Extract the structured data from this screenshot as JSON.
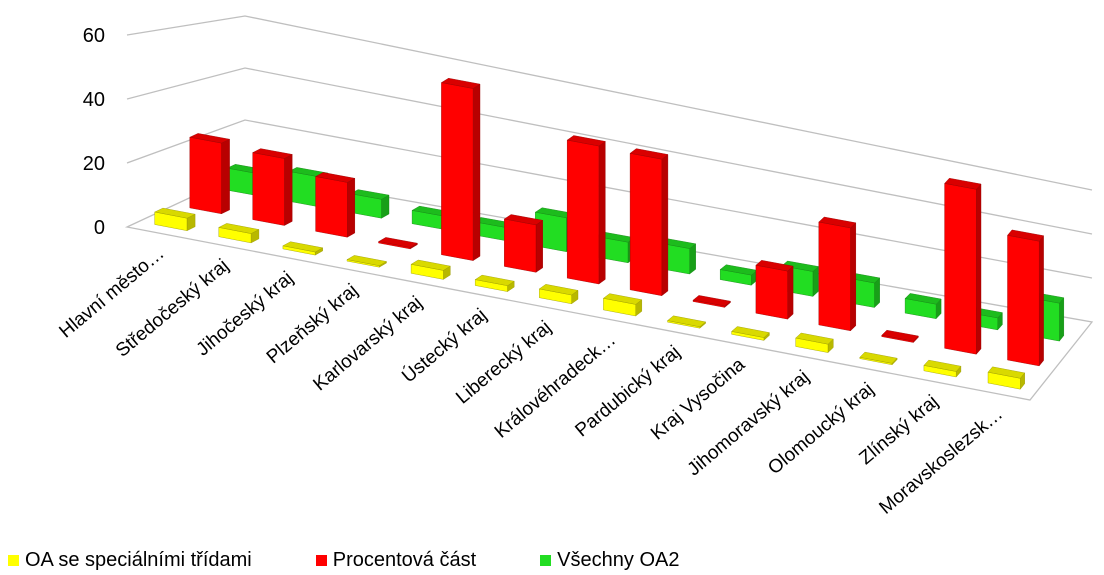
{
  "chart_data": {
    "type": "bar",
    "categories": [
      "Hlavní město…",
      "Středočeský kraj",
      "Jihočeský kraj",
      "Plzeňský kraj",
      "Karlovarský kraj",
      "Ústecký kraj",
      "Liberecký kraj",
      "Královéhradeck…",
      "Pardubický kraj",
      "Kraj Vysočina",
      "Jihomoravský kraj",
      "Olomoucký kraj",
      "Zlínský kraj",
      "Moravskoslezsk…"
    ],
    "series": [
      {
        "name": "OA se speciálními třídami",
        "color": "#ffff00",
        "values": [
          4,
          3,
          1,
          0.5,
          3,
          2,
          3,
          4,
          0.5,
          1,
          3,
          0.5,
          2,
          4
        ]
      },
      {
        "name": "Procentová část",
        "color": "#ff0000",
        "values": [
          24,
          23,
          19,
          0.5,
          61,
          17,
          50,
          50,
          0.5,
          18,
          39,
          0.5,
          64,
          49
        ]
      },
      {
        "name": "Všechny OA2",
        "color": "#22dd22",
        "values": [
          8,
          11,
          7,
          5,
          5,
          13,
          8,
          10,
          4,
          10,
          10,
          6,
          5,
          16
        ]
      }
    ],
    "yticks": [
      "0",
      "20",
      "40",
      "60"
    ],
    "ylim": [
      0,
      60
    ],
    "legend_position": "bottom",
    "grid": true
  }
}
